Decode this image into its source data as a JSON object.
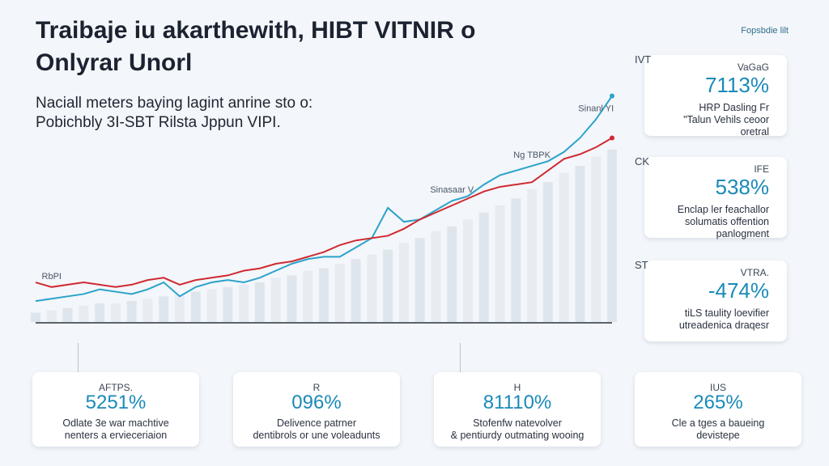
{
  "header": {
    "title_line1": "Traibaje iu akarthewith,  HIBT  VITNIR o",
    "title_line2": "Onlyrar Unorl",
    "subtitle_line1": "Naciall meters baying lagint anrine sto o:",
    "subtitle_line2": "Pobichbly 3I-SBT Rilsta Jppun VIPI.",
    "corner_tag": "Fopsbdie lilt"
  },
  "chart_data": {
    "type": "line",
    "title": "",
    "xlabel": "",
    "ylabel": "",
    "x": [
      1,
      2,
      3,
      4,
      5,
      6,
      7,
      8,
      9,
      10,
      11,
      12,
      13,
      14,
      15,
      16,
      17,
      18,
      19,
      20,
      21,
      22,
      23,
      24,
      25,
      26,
      27,
      28,
      29,
      30,
      31,
      32,
      33,
      34,
      35,
      36,
      37
    ],
    "ylim": [
      0,
      100
    ],
    "grid": false,
    "legend": "none",
    "series": [
      {
        "name": "",
        "color": "#2aa3c9",
        "values": [
          9,
          10,
          11,
          12,
          14,
          13,
          12,
          14,
          17,
          11,
          15,
          17,
          18,
          17,
          19,
          22,
          25,
          27,
          28,
          28,
          32,
          36,
          49,
          43,
          44,
          48,
          52,
          54,
          59,
          63,
          65,
          67,
          69,
          73,
          79,
          87,
          97
        ]
      },
      {
        "name": "",
        "color": "#cf2a32",
        "values": [
          17,
          15,
          16,
          17,
          16,
          15,
          16,
          18,
          19,
          16,
          18,
          19,
          20,
          22,
          23,
          25,
          26,
          28,
          30,
          33,
          35,
          36,
          37,
          40,
          44,
          47,
          50,
          53,
          56,
          58,
          59,
          60,
          65,
          70,
          72,
          75,
          79
        ]
      }
    ],
    "bars": [
      4,
      5,
      6,
      7,
      8,
      8,
      9,
      10,
      11,
      12,
      13,
      14,
      15,
      16,
      17,
      19,
      20,
      22,
      23,
      25,
      27,
      29,
      31,
      34,
      36,
      39,
      41,
      44,
      47,
      50,
      53,
      57,
      60,
      64,
      67,
      71,
      74
    ],
    "annotations": [
      {
        "text": "Sinanl YI",
        "x": 36
      },
      {
        "text": "Ng TBPK",
        "x": 32
      },
      {
        "text": "Sinasaar V",
        "x": 27
      },
      {
        "text": "RbPI",
        "x": 2
      }
    ]
  },
  "side_cards": [
    {
      "tag": "IVT",
      "label": "VaGaG",
      "value": "7113%",
      "desc": "HRP Dasling Fr\n\"Talun Vehils ceoor\noretral"
    },
    {
      "tag": "CK",
      "label": "IFE",
      "value": "538%",
      "desc": "Enclap ler feachallor\nsolumatis offention\npanlogment"
    },
    {
      "tag": "ST",
      "label": "VTRA.",
      "value": "-474%",
      "desc": "tiLS taulity loevifier\nutreadenica draqesr"
    }
  ],
  "bottom_cards": [
    {
      "label": "AFTPS.",
      "value": "5251%",
      "desc": "Odlate 3e war machtive\nnenters a ervieceriaion"
    },
    {
      "label": "R",
      "value": "096%",
      "desc": "Delivence patrner\ndentibrols or une voleadunts"
    },
    {
      "label": "H",
      "value": "81110%",
      "desc": "Stofenfw natevolver\n& pentiurdy outmating wooing"
    },
    {
      "label": "IUS",
      "value": "265%",
      "desc": "Cle a tges a baueing\ndevistepe"
    }
  ]
}
